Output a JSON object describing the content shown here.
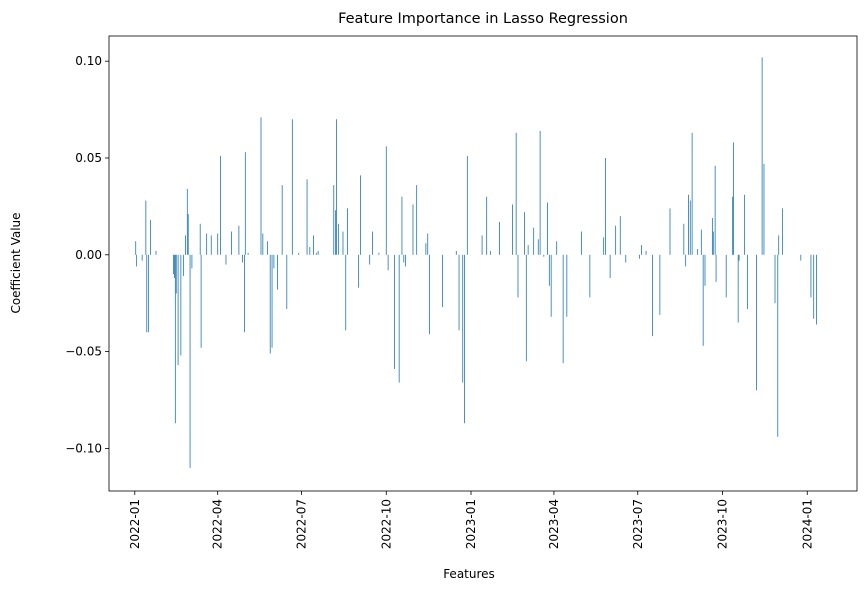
{
  "chart_data": {
    "type": "bar",
    "title": "Feature Importance in Lasso Regression",
    "xlabel": "Features",
    "ylabel": "Coefficient Value",
    "ylim": [
      -0.122,
      0.113
    ],
    "xlim": [
      "2021-12-04",
      "2024-02-24"
    ],
    "grid": false,
    "legend": "none",
    "bar_color": "#1f77b4",
    "x_ticks": [
      "2022-01",
      "2022-04",
      "2022-07",
      "2022-10",
      "2023-01",
      "2023-04",
      "2023-07",
      "2023-10",
      "2024-01"
    ],
    "y_ticks": [
      -0.1,
      -0.05,
      0.0,
      0.05,
      0.1
    ],
    "y_tick_labels": [
      "−0.10",
      "−0.05",
      "0.00",
      "0.05",
      "0.10"
    ],
    "series": [
      {
        "points": [
          [
            "2022-01-02",
            0.007
          ],
          [
            "2022-01-03",
            -0.006
          ],
          [
            "2022-01-09",
            -0.003
          ],
          [
            "2022-01-13",
            0.028
          ],
          [
            "2022-01-14",
            -0.04
          ],
          [
            "2022-01-16",
            -0.04
          ],
          [
            "2022-01-18",
            0.018
          ],
          [
            "2022-01-24",
            0.002
          ],
          [
            "2022-02-12",
            -0.01
          ],
          [
            "2022-02-13",
            -0.012
          ],
          [
            "2022-02-14",
            -0.087
          ],
          [
            "2022-02-15",
            -0.02
          ],
          [
            "2022-02-17",
            -0.057
          ],
          [
            "2022-02-20",
            -0.052
          ],
          [
            "2022-02-23",
            -0.011
          ],
          [
            "2022-02-25",
            0.01
          ],
          [
            "2022-02-27",
            0.034
          ],
          [
            "2022-02-28",
            0.021
          ],
          [
            "2022-03-02",
            -0.11
          ],
          [
            "2022-03-04",
            -0.007
          ],
          [
            "2022-03-13",
            0.016
          ],
          [
            "2022-03-14",
            -0.048
          ],
          [
            "2022-03-20",
            0.011
          ],
          [
            "2022-03-25",
            0.01
          ],
          [
            "2022-04-01",
            0.011
          ],
          [
            "2022-04-04",
            0.051
          ],
          [
            "2022-04-10",
            -0.005
          ],
          [
            "2022-04-16",
            0.012
          ],
          [
            "2022-04-24",
            0.015
          ],
          [
            "2022-04-28",
            -0.004
          ],
          [
            "2022-04-30",
            -0.04
          ],
          [
            "2022-05-01",
            0.053
          ],
          [
            "2022-05-04",
            0.001
          ],
          [
            "2022-05-18",
            0.071
          ],
          [
            "2022-05-20",
            0.011
          ],
          [
            "2022-05-25",
            0.007
          ],
          [
            "2022-05-28",
            -0.051
          ],
          [
            "2022-05-30",
            -0.048
          ],
          [
            "2022-06-01",
            -0.007
          ],
          [
            "2022-06-05",
            -0.018
          ],
          [
            "2022-06-10",
            0.036
          ],
          [
            "2022-06-15",
            -0.028
          ],
          [
            "2022-06-21",
            0.07
          ],
          [
            "2022-06-28",
            0.001
          ],
          [
            "2022-07-07",
            0.039
          ],
          [
            "2022-07-10",
            0.004
          ],
          [
            "2022-07-14",
            0.01
          ],
          [
            "2022-07-17",
            0.001
          ],
          [
            "2022-07-19",
            0.002
          ],
          [
            "2022-08-05",
            0.036
          ],
          [
            "2022-08-07",
            0.023
          ],
          [
            "2022-08-08",
            0.07
          ],
          [
            "2022-08-10",
            0.016
          ],
          [
            "2022-08-15",
            0.012
          ],
          [
            "2022-08-18",
            -0.039
          ],
          [
            "2022-08-20",
            0.024
          ],
          [
            "2022-09-01",
            -0.017
          ],
          [
            "2022-09-03",
            0.041
          ],
          [
            "2022-09-13",
            -0.005
          ],
          [
            "2022-09-16",
            0.012
          ],
          [
            "2022-09-23",
            0.001
          ],
          [
            "2022-10-01",
            0.056
          ],
          [
            "2022-10-03",
            -0.008
          ],
          [
            "2022-10-10",
            -0.059
          ],
          [
            "2022-10-15",
            -0.066
          ],
          [
            "2022-10-18",
            0.03
          ],
          [
            "2022-10-20",
            -0.004
          ],
          [
            "2022-10-22",
            -0.006
          ],
          [
            "2022-10-30",
            0.026
          ],
          [
            "2022-11-03",
            0.036
          ],
          [
            "2022-11-13",
            0.006
          ],
          [
            "2022-11-15",
            0.011
          ],
          [
            "2022-11-17",
            -0.041
          ],
          [
            "2022-12-01",
            -0.027
          ],
          [
            "2022-12-16",
            0.002
          ],
          [
            "2022-12-19",
            -0.039
          ],
          [
            "2022-12-23",
            -0.066
          ],
          [
            "2022-12-25",
            -0.087
          ],
          [
            "2022-12-28",
            0.051
          ],
          [
            "2023-01-13",
            0.01
          ],
          [
            "2023-01-18",
            0.03
          ],
          [
            "2023-01-22",
            0.002
          ],
          [
            "2023-02-01",
            0.017
          ],
          [
            "2023-02-15",
            0.026
          ],
          [
            "2023-02-19",
            0.063
          ],
          [
            "2023-02-21",
            -0.022
          ],
          [
            "2023-02-28",
            0.022
          ],
          [
            "2023-03-02",
            -0.055
          ],
          [
            "2023-03-04",
            0.005
          ],
          [
            "2023-03-10",
            0.014
          ],
          [
            "2023-03-15",
            0.008
          ],
          [
            "2023-03-17",
            0.064
          ],
          [
            "2023-03-21",
            -0.001
          ],
          [
            "2023-03-25",
            0.027
          ],
          [
            "2023-03-27",
            -0.016
          ],
          [
            "2023-03-29",
            -0.032
          ],
          [
            "2023-04-04",
            0.007
          ],
          [
            "2023-04-11",
            -0.056
          ],
          [
            "2023-04-15",
            -0.032
          ],
          [
            "2023-05-01",
            0.012
          ],
          [
            "2023-05-10",
            -0.022
          ],
          [
            "2023-05-25",
            0.009
          ],
          [
            "2023-05-27",
            0.05
          ],
          [
            "2023-06-01",
            -0.012
          ],
          [
            "2023-06-07",
            0.015
          ],
          [
            "2023-06-12",
            0.02
          ],
          [
            "2023-06-18",
            -0.004
          ],
          [
            "2023-07-03",
            -0.002
          ],
          [
            "2023-07-05",
            0.005
          ],
          [
            "2023-07-10",
            0.002
          ],
          [
            "2023-07-17",
            -0.042
          ],
          [
            "2023-07-25",
            -0.031
          ],
          [
            "2023-08-05",
            0.024
          ],
          [
            "2023-08-20",
            0.016
          ],
          [
            "2023-08-22",
            -0.006
          ],
          [
            "2023-08-25",
            0.031
          ],
          [
            "2023-08-27",
            0.028
          ],
          [
            "2023-08-29",
            0.063
          ],
          [
            "2023-09-04",
            0.003
          ],
          [
            "2023-09-08",
            0.013
          ],
          [
            "2023-09-10",
            -0.047
          ],
          [
            "2023-09-12",
            -0.016
          ],
          [
            "2023-09-20",
            0.019
          ],
          [
            "2023-09-21",
            0.012
          ],
          [
            "2023-09-23",
            0.046
          ],
          [
            "2023-09-24",
            -0.014
          ],
          [
            "2023-10-05",
            -0.022
          ],
          [
            "2023-10-12",
            0.03
          ],
          [
            "2023-10-13",
            0.058
          ],
          [
            "2023-10-18",
            -0.035
          ],
          [
            "2023-10-19",
            -0.003
          ],
          [
            "2023-10-25",
            0.031
          ],
          [
            "2023-10-28",
            -0.028
          ],
          [
            "2023-11-07",
            -0.07
          ],
          [
            "2023-11-13",
            0.102
          ],
          [
            "2023-11-15",
            0.047
          ],
          [
            "2023-11-27",
            -0.025
          ],
          [
            "2023-11-30",
            -0.094
          ],
          [
            "2023-12-01",
            0.01
          ],
          [
            "2023-12-05",
            0.024
          ],
          [
            "2023-12-25",
            -0.003
          ],
          [
            "2024-01-05",
            -0.022
          ],
          [
            "2024-01-08",
            -0.033
          ],
          [
            "2024-01-11",
            -0.036
          ]
        ]
      }
    ]
  }
}
